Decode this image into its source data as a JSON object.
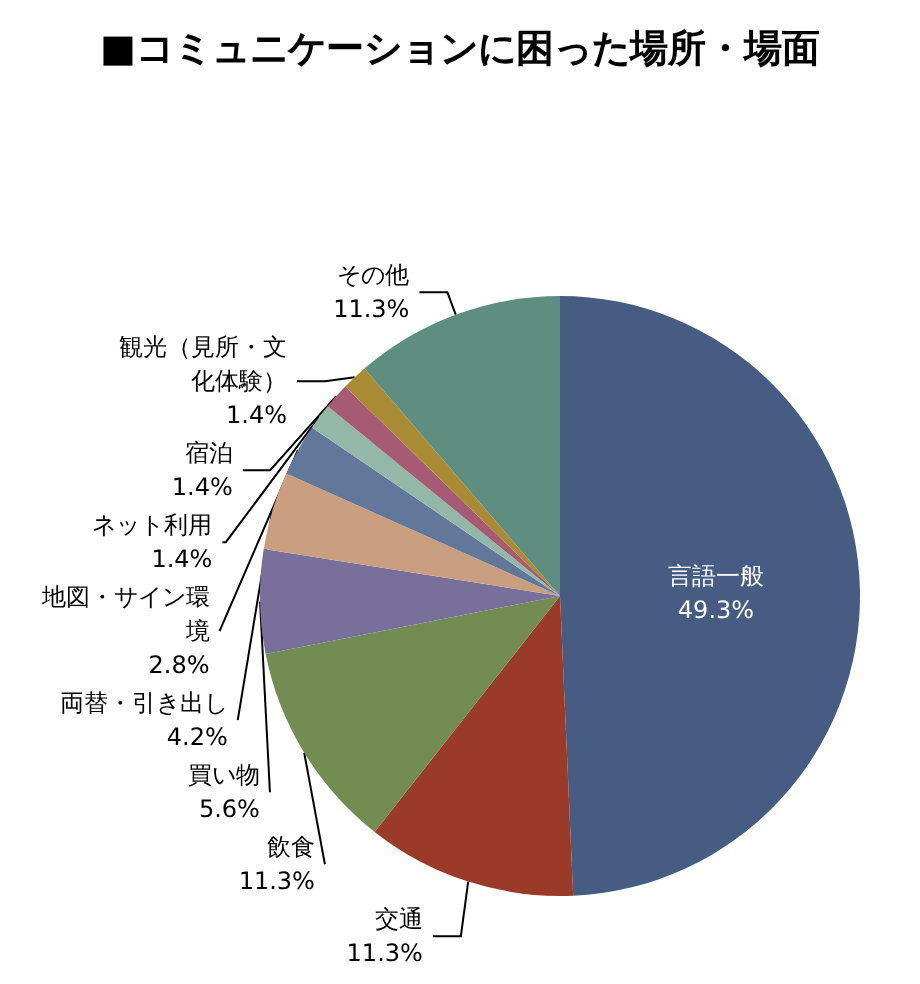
{
  "chart_data": {
    "type": "pie",
    "title": "■コミュニケーションに困った場所・場面",
    "categories": [
      "言語一般",
      "交通",
      "飲食",
      "買い物",
      "両替・引き出し",
      "地図・サイン環境",
      "ネット利用",
      "宿泊",
      "観光（見所・文化体験）",
      "その他"
    ],
    "values": [
      49.3,
      11.3,
      11.3,
      5.6,
      4.2,
      2.8,
      1.4,
      1.4,
      1.4,
      11.3
    ],
    "value_labels": [
      "49.3%",
      "11.3%",
      "11.3%",
      "5.6%",
      "4.2%",
      "2.8%",
      "1.4%",
      "1.4%",
      "1.4%",
      "11.3%"
    ],
    "colors": [
      "#465c82",
      "#9a3a28",
      "#728c51",
      "#78709a",
      "#c99f80",
      "#62789a",
      "#93b8a8",
      "#a65a74",
      "#a88b32",
      "#5e8e80"
    ],
    "legend": false
  }
}
